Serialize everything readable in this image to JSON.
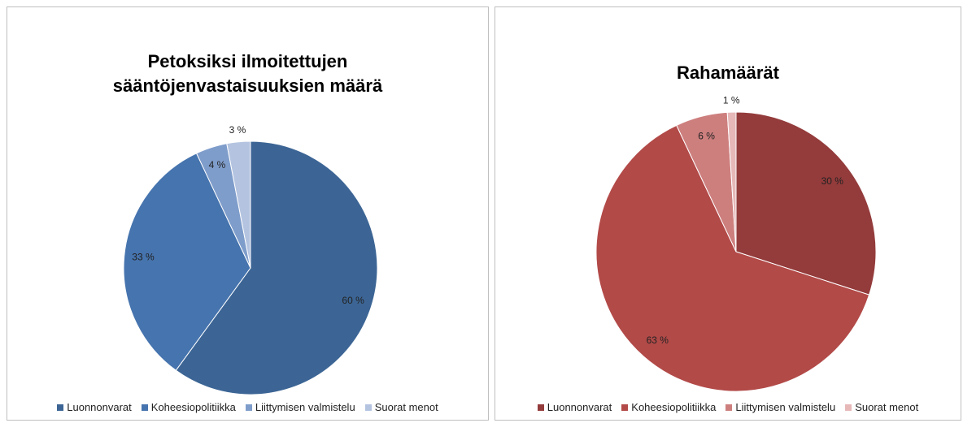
{
  "chart_data": [
    {
      "type": "pie",
      "title": "Petoksiksi ilmoitettujen sääntöjenvastaisuuksien määrä",
      "categories": [
        "Luonnonvarat",
        "Koheesiopolitiikka",
        "Liittymisen valmistelu",
        "Suorat menot"
      ],
      "values": [
        60,
        33,
        4,
        3
      ],
      "value_labels": [
        "60 %",
        "33 %",
        "4 %",
        "3 %"
      ],
      "colors": [
        "#3c6595",
        "#4674ae",
        "#7f9dcb",
        "#b4c4e0"
      ],
      "legend": "bottom"
    },
    {
      "type": "pie",
      "title": "Rahamäärät",
      "categories": [
        "Luonnonvarat",
        "Koheesiopolitiikka",
        "Liittymisen valmistelu",
        "Suorat menot"
      ],
      "values": [
        30,
        63,
        6,
        1
      ],
      "value_labels": [
        "30 %",
        "63 %",
        "6 %",
        "1 %"
      ],
      "colors": [
        "#943b3b",
        "#b24a48",
        "#cd7f7e",
        "#e6b8b8"
      ],
      "legend": "bottom"
    }
  ]
}
